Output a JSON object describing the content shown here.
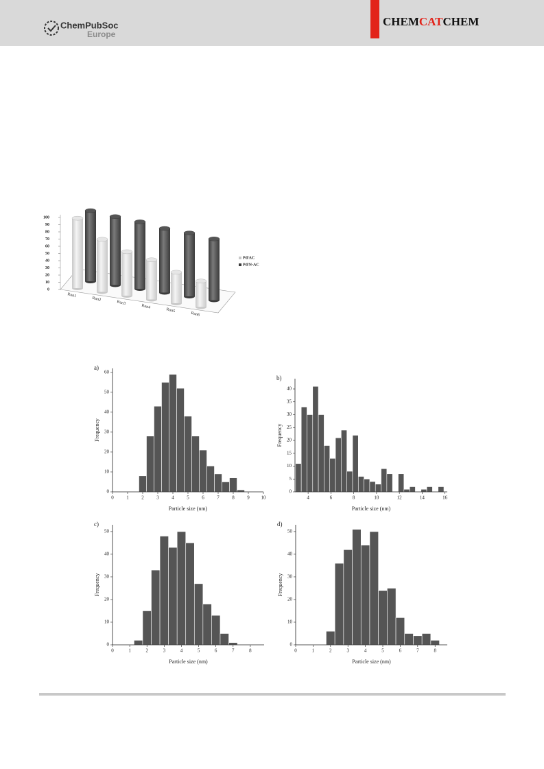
{
  "header": {
    "society": "ChemPubSoc",
    "region": "Europe",
    "journal": [
      "CHEM",
      "CAT",
      "CHEM"
    ]
  },
  "chart_data": [
    {
      "type": "bar3d",
      "categories": [
        "Run1",
        "Run2",
        "Run3",
        "Run4",
        "Run5",
        "Run6"
      ],
      "series": [
        {
          "name": "Pd/AC",
          "color": "#c8c8c8",
          "values": [
            97,
            73,
            61,
            55,
            43,
            36
          ]
        },
        {
          "name": "Pd/N-AC",
          "color": "#3a3a3a",
          "values": [
            98,
            95,
            93,
            89,
            88,
            85
          ]
        }
      ],
      "ylim": [
        0,
        100
      ],
      "yticks": [
        0,
        10,
        20,
        30,
        40,
        50,
        60,
        70,
        80,
        90,
        100
      ],
      "legend": "right"
    },
    {
      "type": "histogram",
      "panel_label": "a)",
      "xlabel": "Particle size (nm)",
      "ylabel": "Frequency",
      "color": "#555555",
      "bins": [
        1.75,
        2.25,
        2.75,
        3.25,
        3.75,
        4.25,
        4.75,
        5.25,
        5.75,
        6.25,
        6.75,
        7.25,
        7.75,
        8.25,
        8.75
      ],
      "values": [
        8,
        28,
        43,
        55,
        59,
        52,
        38,
        28,
        21,
        13,
        9,
        5,
        7,
        1
      ],
      "xlim": [
        0,
        10
      ],
      "xticks": [
        0,
        1,
        2,
        3,
        4,
        5,
        6,
        7,
        8,
        9,
        10
      ],
      "ylim": [
        0,
        62
      ],
      "yticks": [
        0,
        10,
        20,
        30,
        40,
        50,
        60
      ]
    },
    {
      "type": "histogram",
      "panel_label": "b)",
      "xlabel": "Particle size (nm)",
      "ylabel": "Frequency",
      "color": "#555555",
      "bins": [
        2.9,
        3.4,
        3.9,
        4.4,
        4.9,
        5.4,
        5.9,
        6.4,
        6.9,
        7.4,
        7.9,
        8.4,
        8.9,
        9.4,
        9.9,
        10.4,
        10.9,
        11.4,
        11.9,
        12.4,
        12.9,
        13.4,
        13.9,
        14.4,
        14.9,
        15.4,
        15.9
      ],
      "values": [
        11,
        33,
        30,
        41,
        30,
        18,
        13,
        21,
        24,
        8,
        22,
        6,
        5,
        4,
        3,
        9,
        7,
        0,
        7,
        1,
        2,
        0,
        1,
        2,
        0,
        2
      ],
      "xlim": [
        2.85,
        16.2
      ],
      "xticks": [
        4,
        6,
        8,
        10,
        12,
        14,
        16
      ],
      "ylim": [
        0,
        44
      ],
      "yticks": [
        0,
        5,
        10,
        15,
        20,
        25,
        30,
        35,
        40
      ]
    },
    {
      "type": "histogram",
      "panel_label": "c)",
      "xlabel": "Particle size (nm)",
      "ylabel": "Frequency",
      "color": "#555555",
      "bins": [
        1.25,
        1.75,
        2.25,
        2.75,
        3.25,
        3.75,
        4.25,
        4.75,
        5.25,
        5.75,
        6.25,
        6.75,
        7.25
      ],
      "values": [
        2,
        15,
        33,
        48,
        43,
        50,
        45,
        27,
        18,
        13,
        5,
        1
      ],
      "xlim": [
        0,
        8.8
      ],
      "xticks": [
        0,
        1,
        2,
        3,
        4,
        5,
        6,
        7,
        8
      ],
      "ylim": [
        0,
        53
      ],
      "yticks": [
        0,
        10,
        20,
        30,
        40,
        50
      ]
    },
    {
      "type": "histogram",
      "panel_label": "d)",
      "xlabel": "Particle size (nm)",
      "ylabel": "Frequency",
      "color": "#555555",
      "bins": [
        1.75,
        2.25,
        2.75,
        3.25,
        3.75,
        4.25,
        4.75,
        5.25,
        5.75,
        6.25,
        6.75,
        7.25,
        7.75,
        8.25
      ],
      "values": [
        6,
        36,
        42,
        51,
        44,
        50,
        24,
        25,
        12,
        5,
        4,
        5,
        2
      ],
      "xlim": [
        0,
        8.7
      ],
      "xticks": [
        0,
        1,
        2,
        3,
        4,
        5,
        6,
        7,
        8
      ],
      "ylim": [
        0,
        53
      ],
      "yticks": [
        0,
        10,
        20,
        30,
        40,
        50
      ]
    }
  ]
}
